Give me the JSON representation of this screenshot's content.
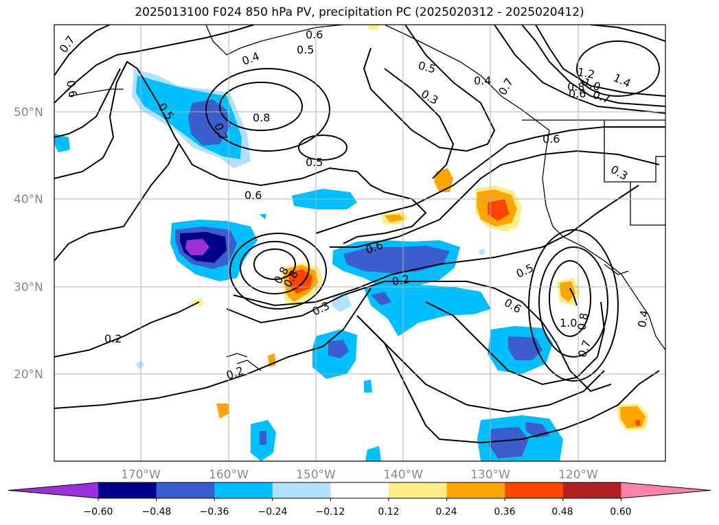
{
  "title": "2025013100 F024 850 hPa PV, precipitation PC (2025020312 - 2025020412)",
  "map": {
    "lat_labels": [
      "50°N",
      "40°N",
      "30°N",
      "20°N"
    ],
    "lon_labels": [
      "170°W",
      "160°W",
      "150°W",
      "140°W",
      "130°W",
      "120°W"
    ],
    "grid": true,
    "contour_labels": [
      "0.7",
      "0.6",
      "0.4",
      "0.6",
      "0.5",
      "0.5",
      "0.3",
      "0.4",
      "0.7",
      "1.2",
      "1.0",
      "1.4",
      "0.8",
      "0.7",
      "0.6",
      "0.6",
      "0.8",
      "0.5",
      "0.7",
      "0.5",
      "0.6",
      "0.3",
      "0.6",
      "0.8",
      "0.8",
      "0.2",
      "0.3",
      "0.5",
      "0.6",
      "1.0",
      "0.8",
      "0.7",
      "0.2",
      "0.2",
      "0.4"
    ]
  },
  "colorbar": {
    "colors": [
      "#9b30d9",
      "#00008b",
      "#3a5fcd",
      "#00bfff",
      "#b0e2ff",
      "#ffffff",
      "#ffec8b",
      "#ffa500",
      "#ff4500",
      "#b22222",
      "#ff82ab"
    ],
    "tick_labels": [
      "−0.60",
      "−0.48",
      "−0.36",
      "−0.24",
      "−0.12",
      "0.12",
      "0.24",
      "0.36",
      "0.48",
      "0.60"
    ]
  }
}
